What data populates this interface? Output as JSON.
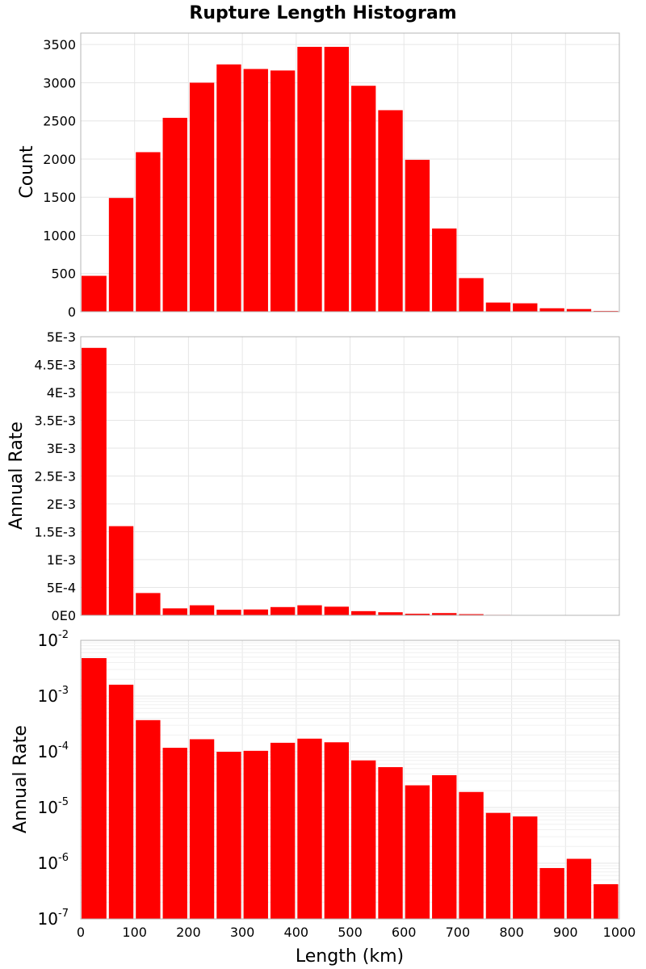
{
  "chart_data": [
    {
      "type": "bar",
      "title": "Rupture Length Histogram",
      "ylabel": "Count",
      "xlim": [
        0,
        1000
      ],
      "ylim": [
        0,
        3650
      ],
      "bin_width": 50,
      "x": [
        25,
        75,
        125,
        175,
        225,
        275,
        325,
        375,
        425,
        475,
        525,
        575,
        625,
        675,
        725,
        775,
        825,
        875,
        925,
        975
      ],
      "values": [
        470,
        1490,
        2090,
        2540,
        3000,
        3240,
        3180,
        3160,
        3470,
        3470,
        2960,
        2640,
        1990,
        1090,
        440,
        120,
        110,
        45,
        35,
        10
      ],
      "yticks": [
        0,
        500,
        1000,
        1500,
        2000,
        2500,
        3000,
        3500
      ],
      "ytick_labels": [
        "0",
        "500",
        "1000",
        "1500",
        "2000",
        "2500",
        "3000",
        "3500"
      ],
      "color": "#ff0000",
      "grid": true
    },
    {
      "type": "bar",
      "ylabel": "Annual Rate",
      "xlim": [
        0,
        1000
      ],
      "ylim": [
        0,
        0.005
      ],
      "bin_width": 50,
      "x": [
        25,
        75,
        125,
        175,
        225,
        275,
        325,
        375,
        425,
        475,
        525,
        575,
        625,
        675,
        725,
        775,
        825,
        875,
        925,
        975
      ],
      "values": [
        0.0048,
        0.0016,
        0.0004,
        0.000125,
        0.00018,
        0.0001,
        0.000105,
        0.000148,
        0.00018,
        0.000155,
        7.5e-05,
        5.5e-05,
        2.8e-05,
        4e-05,
        2.1e-05,
        8.5e-06,
        7.2e-06,
        8.5e-07,
        1.3e-06,
        4.4e-07
      ],
      "yticks": [
        0,
        0.0005,
        0.001,
        0.0015,
        0.002,
        0.0025,
        0.003,
        0.0035,
        0.004,
        0.0045,
        0.005
      ],
      "ytick_labels": [
        "0E0",
        "5E-4",
        "1E-3",
        "1.5E-3",
        "2E-3",
        "2.5E-3",
        "3E-3",
        "3.5E-3",
        "4E-3",
        "4.5E-3",
        "5E-3"
      ],
      "color": "#ff0000",
      "grid": true
    },
    {
      "type": "bar",
      "ylabel": "Annual Rate",
      "xlabel": "Length (km)",
      "y_scale": "log",
      "xlim": [
        0,
        1000
      ],
      "ylim": [
        1e-07,
        0.01
      ],
      "bin_width": 50,
      "x": [
        25,
        75,
        125,
        175,
        225,
        275,
        325,
        375,
        425,
        475,
        525,
        575,
        625,
        675,
        725,
        775,
        825,
        875,
        925,
        975
      ],
      "values": [
        0.0048,
        0.0016,
        0.00037,
        0.000118,
        0.000168,
        0.0001,
        0.000104,
        0.000145,
        0.000172,
        0.000148,
        7e-05,
        5.3e-05,
        2.5e-05,
        3.8e-05,
        1.9e-05,
        8e-06,
        6.9e-06,
        8.2e-07,
        1.2e-06,
        4.2e-07
      ],
      "ytick_bases": [
        "10",
        "10",
        "10",
        "10",
        "10",
        "10"
      ],
      "ytick_exponents": [
        "-7",
        "-6",
        "-5",
        "-4",
        "-3",
        "-2"
      ],
      "xticks": [
        0,
        100,
        200,
        300,
        400,
        500,
        600,
        700,
        800,
        900,
        1000
      ],
      "xtick_labels": [
        "0",
        "100",
        "200",
        "300",
        "400",
        "500",
        "600",
        "700",
        "800",
        "900",
        "1000"
      ],
      "color": "#ff0000",
      "grid": true
    }
  ]
}
